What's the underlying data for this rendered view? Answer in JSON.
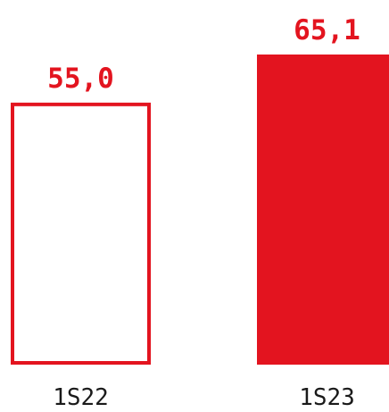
{
  "chart_data": {
    "type": "bar",
    "categories": [
      "1S22",
      "1S23"
    ],
    "values": [
      55.0,
      65.1
    ],
    "value_labels": [
      "55,0",
      "65,1"
    ],
    "title": "",
    "xlabel": "",
    "ylabel": "",
    "ylim": [
      0,
      65.1
    ],
    "grid": false,
    "legend": "none",
    "bar_styles": [
      "outline",
      "filled"
    ]
  },
  "colors": {
    "accent": "#e3141f",
    "background": "#ffffff",
    "text": "#1a1a1a"
  }
}
